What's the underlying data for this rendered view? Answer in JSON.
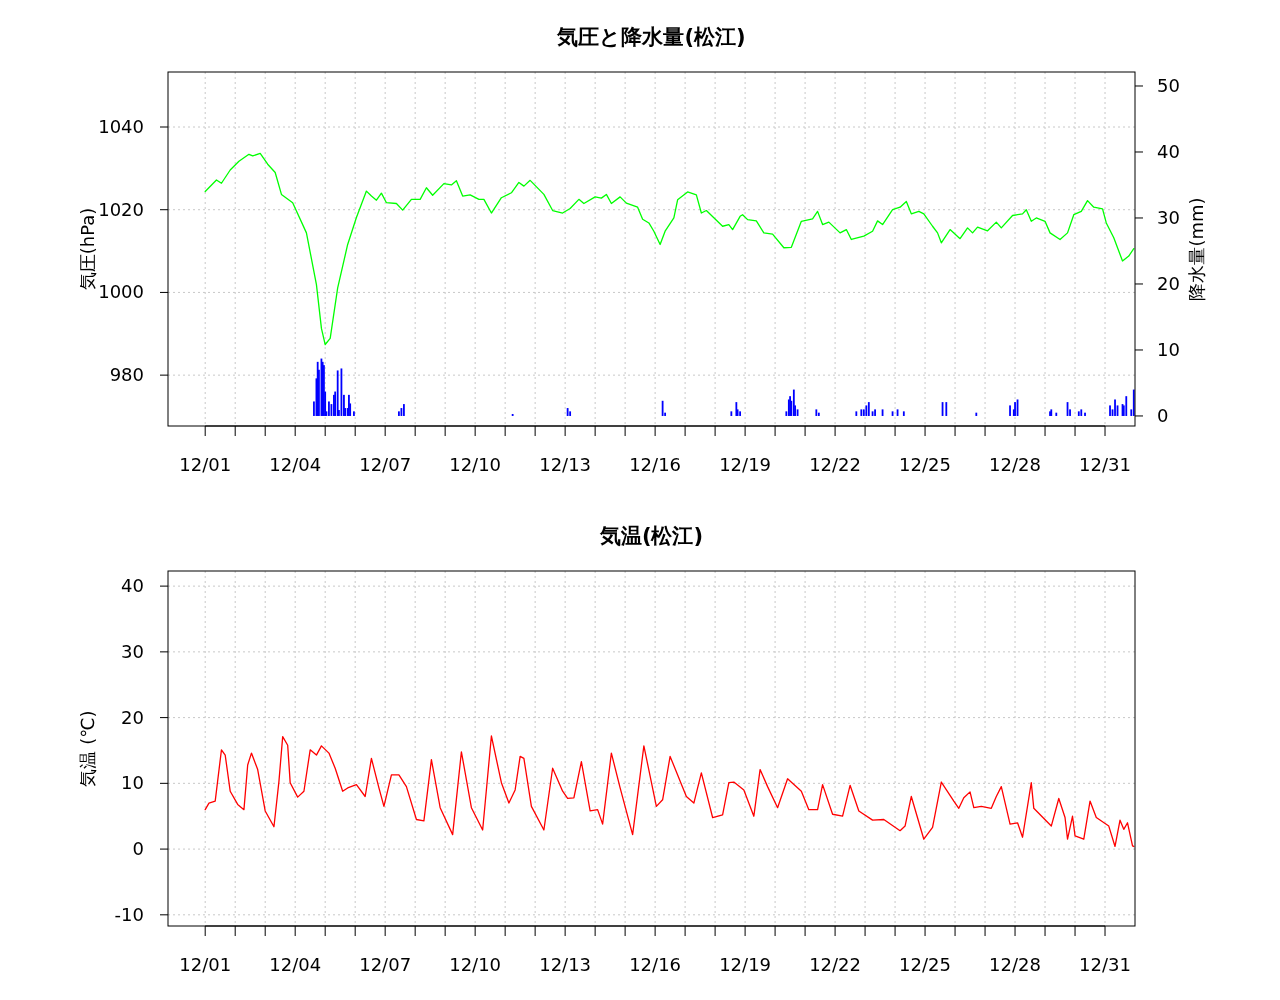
{
  "chart_data": [
    {
      "type": "line",
      "title": "気圧と降水量(松江)",
      "ylabel": "気圧(hPa)",
      "y2label": "降水量(mm)",
      "grid": true,
      "xlim": [
        "--11-29T18:14",
        "--12-31T23:59"
      ],
      "xticks": [
        {
          "value": "--12-01",
          "label": "12/01"
        },
        {
          "value": "--12-02",
          "label": null
        },
        {
          "value": "--12-03",
          "label": null
        },
        {
          "value": "--12-04",
          "label": "12/04"
        },
        {
          "value": "--12-05",
          "label": null
        },
        {
          "value": "--12-06",
          "label": null
        },
        {
          "value": "--12-07",
          "label": "12/07"
        },
        {
          "value": "--12-08",
          "label": null
        },
        {
          "value": "--12-09",
          "label": null
        },
        {
          "value": "--12-10",
          "label": "12/10"
        },
        {
          "value": "--12-11",
          "label": null
        },
        {
          "value": "--12-12",
          "label": null
        },
        {
          "value": "--12-13",
          "label": "12/13"
        },
        {
          "value": "--12-14",
          "label": null
        },
        {
          "value": "--12-15",
          "label": null
        },
        {
          "value": "--12-16",
          "label": "12/16"
        },
        {
          "value": "--12-17",
          "label": null
        },
        {
          "value": "--12-18",
          "label": null
        },
        {
          "value": "--12-19",
          "label": "12/19"
        },
        {
          "value": "--12-20",
          "label": null
        },
        {
          "value": "--12-21",
          "label": null
        },
        {
          "value": "--12-22",
          "label": "12/22"
        },
        {
          "value": "--12-23",
          "label": null
        },
        {
          "value": "--12-24",
          "label": null
        },
        {
          "value": "--12-25",
          "label": "12/25"
        },
        {
          "value": "--12-26",
          "label": null
        },
        {
          "value": "--12-27",
          "label": null
        },
        {
          "value": "--12-28",
          "label": "12/28"
        },
        {
          "value": "--12-29",
          "label": null
        },
        {
          "value": "--12-30",
          "label": null
        },
        {
          "value": "--12-31",
          "label": "12/31"
        }
      ],
      "ylim": [
        967.7,
        1053.3
      ],
      "yticks": [
        980,
        1000,
        1020,
        1040
      ],
      "y2lim": [
        -1.52,
        52.12
      ],
      "y2ticks": [
        0,
        10,
        20,
        30,
        40,
        50
      ],
      "series": [
        {
          "color": "#00ff00",
          "x": [
            "--12-01T00:00",
            "--12-01T09:00",
            "--12-01T13:00",
            "--12-01T20:00",
            "--12-02T03:00",
            "--12-02T11:00",
            "--12-02T14:00",
            "--12-02T20:00",
            "--12-03T02:00",
            "--12-03T08:00",
            "--12-03T13:00",
            "--12-03T22:00",
            "--12-04T09:00",
            "--12-04T17:00",
            "--12-04T21:00",
            "--12-05T00:00",
            "--12-05T04:00",
            "--12-05T10:00",
            "--12-05T18:00",
            "--12-06T01:00",
            "--12-06T09:00",
            "--12-06T13:00",
            "--12-06T17:00",
            "--12-06T21:00",
            "--12-07T01:00",
            "--12-07T09:00",
            "--12-07T14:00",
            "--12-07T21:00",
            "--12-08T04:00",
            "--12-08T09:00",
            "--12-08T14:00",
            "--12-08T23:00",
            "--12-09T05:00",
            "--12-09T09:00",
            "--12-09T14:00",
            "--12-09T20:00",
            "--12-10T03:00",
            "--12-10T07:00",
            "--12-10T13:00",
            "--12-10T21:00",
            "--12-11T05:00",
            "--12-11T11:00",
            "--12-11T15:00",
            "--12-11T20:00",
            "--12-12T07:00",
            "--12-12T14:00",
            "--12-12T22:00",
            "--12-13T04:00",
            "--12-13T11:00",
            "--12-13T15:00",
            "--12-14T00:00",
            "--12-14T05:00",
            "--12-14T09:00",
            "--12-14T13:00",
            "--12-14T20:00",
            "--12-15T01:00",
            "--12-15T10:00",
            "--12-15T14:00",
            "--12-15T19:00",
            "--12-15T23:00",
            "--12-16T04:00",
            "--12-16T08:00",
            "--12-16T15:00",
            "--12-16T18:00",
            "--12-17T02:00",
            "--12-17T09:00",
            "--12-17T13:00",
            "--12-17T17:00",
            "--12-18T06:00",
            "--12-18T11:00",
            "--12-18T14:00",
            "--12-18T20:00",
            "--12-18T22:00",
            "--12-19T02:00",
            "--12-19T09:00",
            "--12-19T15:00",
            "--12-19T22:00",
            "--12-20T07:00",
            "--12-20T13:00",
            "--12-20T21:00",
            "--12-21T06:00",
            "--12-21T10:00",
            "--12-21T14:00",
            "--12-21T19:00",
            "--12-22T04:00",
            "--12-22T09:00",
            "--12-22T13:00",
            "--12-22T23:00",
            "--12-23T06:00",
            "--12-23T10:00",
            "--12-23T14:00",
            "--12-23T22:00",
            "--12-24T04:00",
            "--12-24T09:00",
            "--12-24T13:00",
            "--12-24T19:00",
            "--12-24T23:00",
            "--12-25T06:00",
            "--12-25T10:00",
            "--12-25T13:00",
            "--12-25T20:00",
            "--12-26T04:00",
            "--12-26T10:00",
            "--12-26T14:00",
            "--12-26T18:00",
            "--12-27T02:00",
            "--12-27T09:00",
            "--12-27T13:00",
            "--12-27T22:00",
            "--12-28T06:00",
            "--12-28T09:00",
            "--12-28T13:00",
            "--12-28T17:00",
            "--12-29T00:00",
            "--12-29T04:00",
            "--12-29T12:00",
            "--12-29T18:00",
            "--12-29T23:00",
            "--12-30T05:00",
            "--12-30T10:00",
            "--12-30T15:00",
            "--12-30T22:00",
            "--12-31T01:00",
            "--12-31T07:00",
            "--12-31T14:00",
            "--12-31T19:00",
            "--12-31T23:00"
          ],
          "values": [
            1024.4,
            1027.2,
            1026.4,
            1029.6,
            1031.7,
            1033.4,
            1033.0,
            1033.6,
            1031.0,
            1029.0,
            1023.7,
            1021.7,
            1014.4,
            1001.9,
            991.3,
            987.4,
            988.9,
            1001.1,
            1011.6,
            1018.1,
            1024.5,
            1023.3,
            1022.3,
            1024.0,
            1021.7,
            1021.5,
            1019.9,
            1022.5,
            1022.5,
            1025.3,
            1023.5,
            1026.3,
            1026.0,
            1027.0,
            1023.3,
            1023.6,
            1022.5,
            1022.5,
            1019.2,
            1022.9,
            1024.1,
            1026.6,
            1025.7,
            1027.1,
            1023.7,
            1019.8,
            1019.2,
            1020.3,
            1022.5,
            1021.5,
            1023.1,
            1022.8,
            1023.7,
            1021.5,
            1023.1,
            1021.6,
            1020.6,
            1017.7,
            1016.8,
            1014.8,
            1011.6,
            1014.8,
            1018.0,
            1022.4,
            1024.3,
            1023.6,
            1019.2,
            1019.8,
            1016.0,
            1016.4,
            1015.2,
            1018.4,
            1018.8,
            1017.6,
            1017.3,
            1014.4,
            1014.1,
            1010.8,
            1010.9,
            1017.2,
            1017.8,
            1019.6,
            1016.4,
            1017.0,
            1014.4,
            1015.2,
            1012.8,
            1013.6,
            1014.8,
            1017.3,
            1016.4,
            1020.0,
            1020.6,
            1022.0,
            1019.0,
            1019.6,
            1019.0,
            1016.0,
            1014.4,
            1012.0,
            1015.2,
            1013.0,
            1015.6,
            1014.4,
            1015.8,
            1014.9,
            1017.0,
            1015.6,
            1018.6,
            1019.0,
            1020.0,
            1017.2,
            1018.0,
            1017.2,
            1014.4,
            1012.8,
            1014.4,
            1018.8,
            1019.6,
            1022.2,
            1020.6,
            1020.2,
            1016.8,
            1013.2,
            1007.6,
            1008.8,
            1010.6
          ]
        },
        {
          "type": "bar",
          "axis": "y2",
          "color": "#0000ff",
          "x": [
            "--12-04T15:00",
            "--12-04T17:00",
            "--12-04T18:00",
            "--12-04T19:00",
            "--12-04T21:00",
            "--12-04T22:00",
            "--12-04T23:00",
            "--12-05T00:00",
            "--12-05T01:00",
            "--12-05T03:00",
            "--12-05T05:00",
            "--12-05T07:00",
            "--12-05T08:00",
            "--12-05T10:00",
            "--12-05T11:00",
            "--12-05T13:00",
            "--12-05T15:00",
            "--12-05T16:00",
            "--12-05T18:00",
            "--12-05T19:00",
            "--12-05T20:00",
            "--12-05T23:00",
            "--12-07T11:00",
            "--12-07T13:00",
            "--12-07T15:00",
            "--12-11T06:00",
            "--12-13T02:00",
            "--12-13T04:00",
            "--12-16T06:00",
            "--12-16T08:00",
            "--12-18T13:00",
            "--12-18T17:00",
            "--12-18T18:00",
            "--12-18T20:00",
            "--12-20T09:00",
            "--12-20T11:00",
            "--12-20T12:00",
            "--12-20T13:00",
            "--12-20T15:00",
            "--12-20T16:00",
            "--12-20T18:00",
            "--12-21T09:00",
            "--12-21T11:00",
            "--12-22T17:00",
            "--12-22T21:00",
            "--12-22T23:00",
            "--12-23T01:00",
            "--12-23T03:00",
            "--12-23T06:00",
            "--12-23T08:00",
            "--12-23T14:00",
            "--12-23T22:00",
            "--12-24T02:00",
            "--12-24T07:00",
            "--12-25T14:00",
            "--12-25T17:00",
            "--12-26T17:00",
            "--12-27T20:00",
            "--12-27T23:00",
            "--12-28T00:00",
            "--12-28T02:00",
            "--12-29T04:00",
            "--12-29T05:00",
            "--12-29T09:00",
            "--12-29T18:00",
            "--12-29T20:00",
            "--12-30T03:00",
            "--12-30T05:00",
            "--12-30T08:00",
            "--12-31T04:00",
            "--12-31T06:00",
            "--12-31T08:00",
            "--12-31T10:00",
            "--12-31T14:00",
            "--12-31T15:00",
            "--12-31T17:00",
            "--12-31T21:00",
            "--12-31T23:00"
          ],
          "values": [
            2.2,
            5.7,
            8.2,
            7.0,
            8.7,
            8.2,
            7.7,
            3.7,
            0.7,
            2.2,
            1.8,
            3.2,
            3.7,
            6.9,
            0.9,
            7.2,
            3.2,
            1.2,
            1.2,
            3.2,
            1.9,
            0.7,
            0.7,
            1.2,
            1.8,
            0.3,
            1.2,
            0.7,
            2.3,
            0.5,
            0.7,
            2.1,
            1.0,
            0.7,
            0.7,
            2.5,
            3.0,
            2.3,
            4.0,
            1.6,
            1.0,
            1.0,
            0.5,
            0.7,
            1.0,
            1.0,
            1.6,
            2.1,
            0.7,
            1.0,
            1.0,
            0.7,
            1.0,
            0.7,
            2.1,
            2.1,
            0.5,
            1.6,
            1.0,
            2.1,
            2.5,
            0.7,
            1.0,
            0.5,
            2.1,
            1.0,
            0.7,
            1.0,
            0.5,
            1.6,
            1.0,
            2.5,
            1.6,
            1.8,
            1.6,
            3.0,
            1.0,
            4.0
          ]
        }
      ]
    },
    {
      "type": "line",
      "title": "気温(松江)",
      "ylabel": "気温 (℃)",
      "grid": true,
      "xlim": [
        "--11-29T18:14",
        "--12-31T23:59"
      ],
      "xticks": [
        {
          "value": "--12-01",
          "label": "12/01"
        },
        {
          "value": "--12-02",
          "label": null
        },
        {
          "value": "--12-03",
          "label": null
        },
        {
          "value": "--12-04",
          "label": "12/04"
        },
        {
          "value": "--12-05",
          "label": null
        },
        {
          "value": "--12-06",
          "label": null
        },
        {
          "value": "--12-07",
          "label": "12/07"
        },
        {
          "value": "--12-08",
          "label": null
        },
        {
          "value": "--12-09",
          "label": null
        },
        {
          "value": "--12-10",
          "label": "12/10"
        },
        {
          "value": "--12-11",
          "label": null
        },
        {
          "value": "--12-12",
          "label": null
        },
        {
          "value": "--12-13",
          "label": "12/13"
        },
        {
          "value": "--12-14",
          "label": null
        },
        {
          "value": "--12-15",
          "label": null
        },
        {
          "value": "--12-16",
          "label": "12/16"
        },
        {
          "value": "--12-17",
          "label": null
        },
        {
          "value": "--12-18",
          "label": null
        },
        {
          "value": "--12-19",
          "label": "12/19"
        },
        {
          "value": "--12-20",
          "label": null
        },
        {
          "value": "--12-21",
          "label": null
        },
        {
          "value": "--12-22",
          "label": "12/22"
        },
        {
          "value": "--12-23",
          "label": null
        },
        {
          "value": "--12-24",
          "label": null
        },
        {
          "value": "--12-25",
          "label": "12/25"
        },
        {
          "value": "--12-26",
          "label": null
        },
        {
          "value": "--12-27",
          "label": null
        },
        {
          "value": "--12-28",
          "label": "12/28"
        },
        {
          "value": "--12-29",
          "label": null
        },
        {
          "value": "--12-30",
          "label": null
        },
        {
          "value": "--12-31",
          "label": "12/31"
        }
      ],
      "ylim": [
        -11.7,
        42.3
      ],
      "yticks": [
        -10,
        0,
        10,
        20,
        30,
        40
      ],
      "series": [
        {
          "color": "#ff0000",
          "x": [
            "--12-01T00:00",
            "--12-01T03:00",
            "--12-01T08:00",
            "--12-01T13:00",
            "--12-01T16:00",
            "--12-01T20:00",
            "--12-02T02:00",
            "--12-02T07:00",
            "--12-02T10:00",
            "--12-02T13:00",
            "--12-02T18:00",
            "--12-03T00:00",
            "--12-03T07:00",
            "--12-03T11:00",
            "--12-03T14:00",
            "--12-03T18:00",
            "--12-03T20:00",
            "--12-04T02:00",
            "--12-04T07:00",
            "--12-04T12:00",
            "--12-04T17:00",
            "--12-04T21:00",
            "--12-05T03:00",
            "--12-05T08:00",
            "--12-05T14:00",
            "--12-05T18:00",
            "--12-06T01:00",
            "--12-06T08:00",
            "--12-06T13:00",
            "--12-06T19:00",
            "--12-06T23:00",
            "--12-07T05:00",
            "--12-07T11:00",
            "--12-07T17:00",
            "--12-08T01:00",
            "--12-08T07:00",
            "--12-08T13:00",
            "--12-08T20:00",
            "--12-09T06:00",
            "--12-09T13:00",
            "--12-09T21:00",
            "--12-10T06:00",
            "--12-10T13:00",
            "--12-10T21:00",
            "--12-11T03:00",
            "--12-11T08:00",
            "--12-11T12:00",
            "--12-11T15:00",
            "--12-11T21:00",
            "--12-12T07:00",
            "--12-12T14:00",
            "--12-12T22:00",
            "--12-13T02:00",
            "--12-13T07:00",
            "--12-13T13:00",
            "--12-13T20:00",
            "--12-14T02:00",
            "--12-14T06:00",
            "--12-14T13:00",
            "--12-14T20:00",
            "--12-15T06:00",
            "--12-15T15:00",
            "--12-16T01:00",
            "--12-16T06:00",
            "--12-16T12:00",
            "--12-17T01:00",
            "--12-17T07:00",
            "--12-17T13:00",
            "--12-17T22:00",
            "--12-18T06:00",
            "--12-18T11:00",
            "--12-18T15:00",
            "--12-18T23:00",
            "--12-19T07:00",
            "--12-19T12:00",
            "--12-19T18:00",
            "--12-20T02:00",
            "--12-20T10:00",
            "--12-20T21:00",
            "--12-21T03:00",
            "--12-21T10:00",
            "--12-21T14:00",
            "--12-21T22:00",
            "--12-22T06:00",
            "--12-22T12:00",
            "--12-22T19:00",
            "--12-23T06:00",
            "--12-23T15:00",
            "--12-24T04:00",
            "--12-24T08:00",
            "--12-24T13:00",
            "--12-24T23:00",
            "--12-25T06:00",
            "--12-25T13:00",
            "--12-25T23:00",
            "--12-26T03:00",
            "--12-26T07:00",
            "--12-26T12:00",
            "--12-26T15:00",
            "--12-26T21:00",
            "--12-27T05:00",
            "--12-27T09:00",
            "--12-27T13:00",
            "--12-27T20:00",
            "--12-28T02:00",
            "--12-28T06:00",
            "--12-28T13:00",
            "--12-28T15:00",
            "--12-29T05:00",
            "--12-29T11:00",
            "--12-29T16:00",
            "--12-29T18:00",
            "--12-29T22:00",
            "--12-30T00:00",
            "--12-30T07:00",
            "--12-30T12:00",
            "--12-30T17:00",
            "--12-31T03:00",
            "--12-31T08:00",
            "--12-31T12:00",
            "--12-31T15:00",
            "--12-31T18:00",
            "--12-31T22:00",
            "--12-31T23:00"
          ],
          "values": [
            6.0,
            7.0,
            7.3,
            15.1,
            14.3,
            8.8,
            6.8,
            6.0,
            12.8,
            14.6,
            12.1,
            5.8,
            3.4,
            10.3,
            17.1,
            15.8,
            10.1,
            7.9,
            8.8,
            15.1,
            14.3,
            15.7,
            14.6,
            12.3,
            8.8,
            9.3,
            9.8,
            8.0,
            13.8,
            9.3,
            6.5,
            11.3,
            11.3,
            9.5,
            4.5,
            4.3,
            13.6,
            6.3,
            2.2,
            14.8,
            6.3,
            2.9,
            17.2,
            10.1,
            7.0,
            9.0,
            14.1,
            13.8,
            6.5,
            2.9,
            12.3,
            8.8,
            7.7,
            7.8,
            13.3,
            5.8,
            6.0,
            3.8,
            14.6,
            9.3,
            2.2,
            15.7,
            6.5,
            7.5,
            14.1,
            8.0,
            7.0,
            11.6,
            4.8,
            5.2,
            10.1,
            10.2,
            9.0,
            5.0,
            12.1,
            9.5,
            6.3,
            10.7,
            8.8,
            6.0,
            6.0,
            9.8,
            5.3,
            5.0,
            9.7,
            5.8,
            4.4,
            4.5,
            2.8,
            3.5,
            8.0,
            1.5,
            3.3,
            10.2,
            7.3,
            6.2,
            7.8,
            8.7,
            6.3,
            6.5,
            6.2,
            8.0,
            9.5,
            3.8,
            4.0,
            1.8,
            10.1,
            6.2,
            3.5,
            7.7,
            4.8,
            1.5,
            5.0,
            2.0,
            1.5,
            7.3,
            4.8,
            3.5,
            0.4,
            4.4,
            3.0,
            4.0,
            0.5,
            0.4
          ]
        }
      ]
    }
  ]
}
